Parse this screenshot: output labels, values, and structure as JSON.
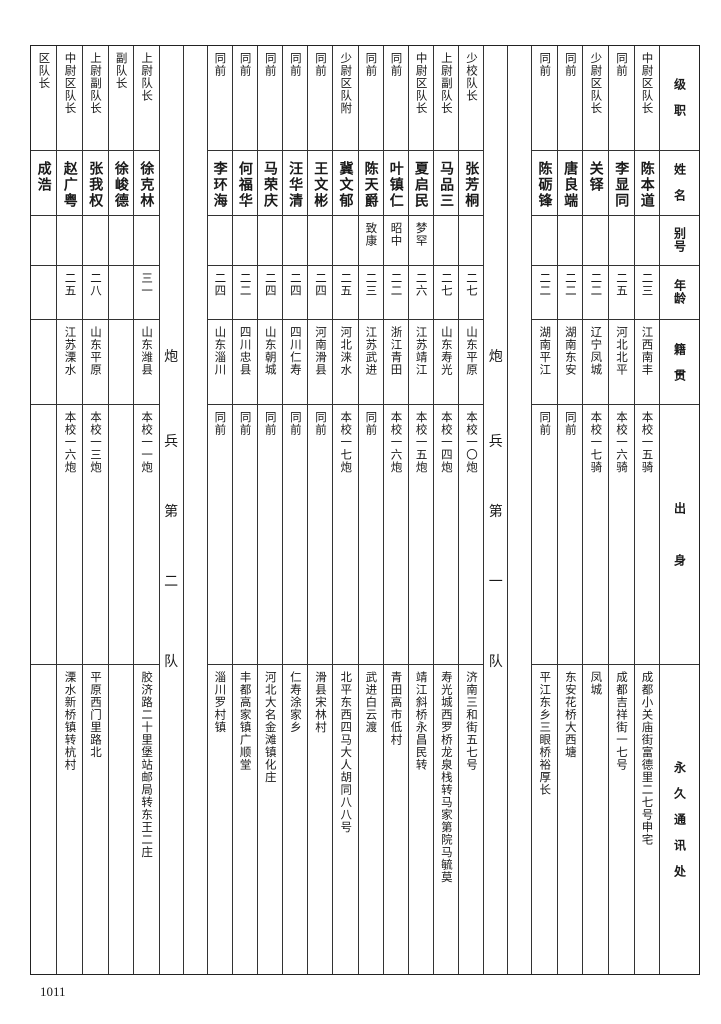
{
  "header": {
    "rank": "级　职",
    "name": "姓　名",
    "alias": "别号",
    "age": "年龄",
    "origin": "籍　贯",
    "background": "出　　　身",
    "address": "永　久　通　讯　处"
  },
  "sections": [
    {
      "type": "rows",
      "rows": [
        {
          "rank": "中尉区队长",
          "name": "陈本道",
          "alias": "",
          "age": "二三",
          "origin": "江西南丰",
          "background": "本校一五骑",
          "address": "成都小关庙街富德里二七号申宅"
        },
        {
          "rank": "同前",
          "name": "李显同",
          "alias": "",
          "age": "二五",
          "origin": "河北北平",
          "background": "本校一六骑",
          "address": "成都吉祥街一七号"
        },
        {
          "rank": "少尉区队长",
          "name": "关铎",
          "alias": "",
          "age": "二二",
          "origin": "辽宁凤城",
          "background": "本校一七骑",
          "address": "凤城"
        },
        {
          "rank": "同前",
          "name": "唐良端",
          "alias": "",
          "age": "二二",
          "origin": "湖南东安",
          "background": "同前",
          "address": "东安花桥大西塘"
        },
        {
          "rank": "同前",
          "name": "陈砺锋",
          "alias": "",
          "age": "二二",
          "origin": "湖南平江",
          "background": "同前",
          "address": "平江东乡三眼桥裕厚长"
        }
      ]
    },
    {
      "type": "separator",
      "chars": [
        "炮",
        "兵",
        "第",
        "一",
        "队"
      ]
    },
    {
      "type": "rows",
      "rows": [
        {
          "rank": "少校队长",
          "name": "张芳桐",
          "alias": "",
          "age": "二七",
          "origin": "山东平原",
          "background": "本校一〇炮",
          "address": "济南三和街五七号"
        },
        {
          "rank": "上尉副队长",
          "name": "马品三",
          "alias": "",
          "age": "二七",
          "origin": "山东寿光",
          "background": "本校一四炮",
          "address": "寿光城西罗桥龙泉栈转马家第院马毓莫"
        },
        {
          "rank": "中尉区队长",
          "name": "夏启民",
          "alias": "梦罕",
          "age": "二六",
          "origin": "江苏靖江",
          "background": "本校一五炮",
          "address": "靖江斜桥永昌民转"
        },
        {
          "rank": "同前",
          "name": "叶镇仁",
          "alias": "昭中",
          "age": "二二",
          "origin": "浙江青田",
          "background": "本校一六炮",
          "address": "青田高市低村"
        },
        {
          "rank": "同前",
          "name": "陈天爵",
          "alias": "致康",
          "age": "二三",
          "origin": "江苏武进",
          "background": "同前",
          "address": "武进白云渡"
        },
        {
          "rank": "少尉区队附",
          "name": "冀文郁",
          "alias": "",
          "age": "二五",
          "origin": "河北涞水",
          "background": "本校一七炮",
          "address": "北平东西四马大人胡同八八号"
        },
        {
          "rank": "同前",
          "name": "王文彬",
          "alias": "",
          "age": "二四",
          "origin": "河南滑县",
          "background": "同前",
          "address": "滑县宋林村"
        },
        {
          "rank": "同前",
          "name": "汪华清",
          "alias": "",
          "age": "二四",
          "origin": "四川仁寿",
          "background": "同前",
          "address": "仁寿涂家乡"
        },
        {
          "rank": "同前",
          "name": "马荣庆",
          "alias": "",
          "age": "二四",
          "origin": "山东朝城",
          "background": "同前",
          "address": "河北大名金滩镇化庄"
        },
        {
          "rank": "同前",
          "name": "何福华",
          "alias": "",
          "age": "二二",
          "origin": "四川忠县",
          "background": "同前",
          "address": "丰都高家镇广顺堂"
        },
        {
          "rank": "同前",
          "name": "李环海",
          "alias": "",
          "age": "二四",
          "origin": "山东淄川",
          "background": "同前",
          "address": "淄川罗村镇"
        }
      ]
    },
    {
      "type": "separator",
      "chars": [
        "炮",
        "兵",
        "第",
        "二",
        "队"
      ]
    },
    {
      "type": "rows",
      "rows": [
        {
          "rank": "上尉队长",
          "name": "徐克林",
          "alias": "",
          "age": "三一",
          "origin": "山东潍县",
          "background": "本校一一炮",
          "address": "胶济路二十里堡站邮局转东王二庄"
        },
        {
          "rank": "副队长",
          "name": "徐峻德",
          "alias": "",
          "age": "",
          "origin": "",
          "background": "",
          "address": ""
        },
        {
          "rank": "上尉副队长",
          "name": "张我权",
          "alias": "",
          "age": "二八",
          "origin": "山东平原",
          "background": "本校一三炮",
          "address": "平原西门里路北"
        },
        {
          "rank": "中尉区队长",
          "name": "赵广粤",
          "alias": "",
          "age": "二五",
          "origin": "江苏溧水",
          "background": "本校一六炮",
          "address": "溧水新桥镇转杭村"
        },
        {
          "rank": "区队长",
          "name": "成浩",
          "alias": "",
          "age": "",
          "origin": "",
          "background": "",
          "address": ""
        }
      ]
    }
  ],
  "page_number": "1011"
}
